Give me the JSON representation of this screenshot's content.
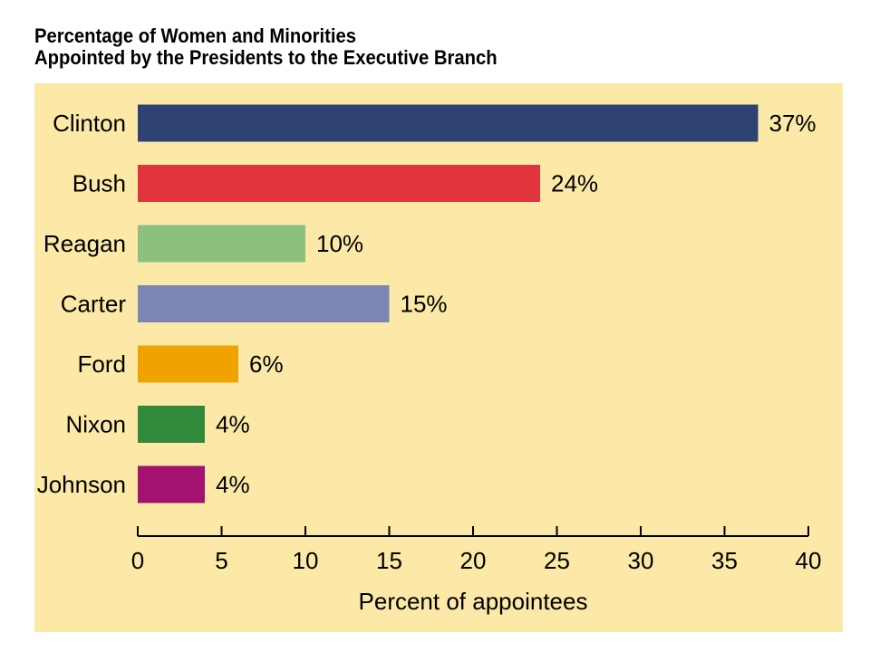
{
  "chart_data": {
    "type": "bar",
    "orientation": "horizontal",
    "title_line1": "Percentage of Women and Minorities",
    "title_line2": "Appointed by the Presidents to the Executive Branch",
    "xlabel": "Percent of appointees",
    "ylabel": "",
    "xlim": [
      0,
      40
    ],
    "xticks": [
      0,
      5,
      10,
      15,
      20,
      25,
      30,
      35,
      40
    ],
    "grid": false,
    "categories": [
      "Clinton",
      "Bush",
      "Reagan",
      "Carter",
      "Ford",
      "Nixon",
      "Johnson"
    ],
    "values": [
      37,
      24,
      10,
      15,
      6,
      4,
      4
    ],
    "value_labels": [
      "37%",
      "24%",
      "10%",
      "15%",
      "6%",
      "4%",
      "4%"
    ],
    "colors": [
      "#2e4373",
      "#e0353d",
      "#8cc07f",
      "#7b86b5",
      "#f0a200",
      "#2f8a3a",
      "#a3126e"
    ],
    "background_color": "#fce9a7"
  }
}
